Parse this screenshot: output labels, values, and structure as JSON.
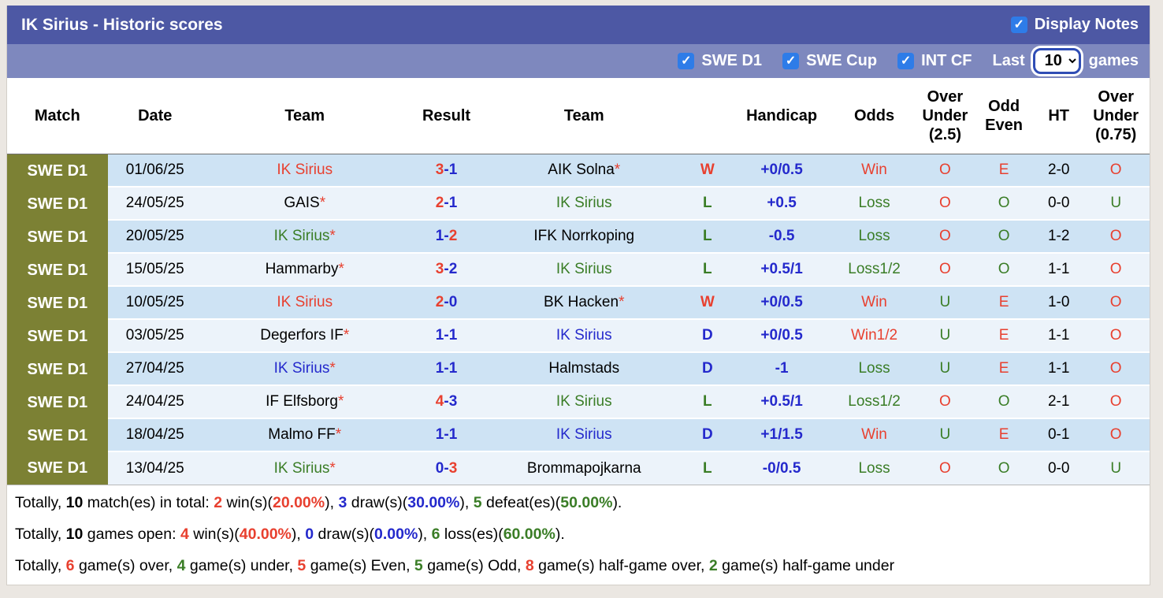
{
  "header": {
    "title": "IK Sirius - Historic scores",
    "display_notes_label": "Display Notes",
    "filters": [
      {
        "label": "SWE D1",
        "checked": true
      },
      {
        "label": "SWE Cup",
        "checked": true
      },
      {
        "label": "INT CF",
        "checked": true
      }
    ],
    "last_label": "Last",
    "games_label": "games",
    "games_options": [
      "10"
    ],
    "games_selected": "10"
  },
  "colors": {
    "accent_red": "#e8402f",
    "accent_blue": "#2429cc",
    "accent_green": "#3a7d26",
    "league_olive": "#7c8134",
    "header_purple": "#4d58a4",
    "filterbar_purple": "#7e88be",
    "row_stripe_dark": "#cee3f4",
    "row_stripe_light": "#ecf3fa",
    "checkbox_blue": "#2e7ce8"
  },
  "table": {
    "columns": [
      "Match",
      "Date",
      "Team",
      "Result",
      "Team",
      "",
      "Handicap",
      "Odds",
      "Over\nUnder\n(2.5)",
      "Odd\nEven",
      "HT",
      "Over\nUnder\n(0.75)"
    ],
    "rows": [
      {
        "league": "SWE D1",
        "date": "01/06/25",
        "home": {
          "name": "IK Sirius",
          "color": "red",
          "star": false
        },
        "result": {
          "home": "3",
          "away": "1",
          "home_color": "red",
          "away_color": "blue"
        },
        "away": {
          "name": "AIK Solna",
          "color": "black",
          "star": true
        },
        "wld": {
          "text": "W",
          "color": "red"
        },
        "handicap": "+0/0.5",
        "odds": {
          "text": "Win",
          "color": "red"
        },
        "ou25": {
          "text": "O",
          "color": "red"
        },
        "odd_even": {
          "text": "E",
          "color": "red"
        },
        "ht": "2-0",
        "ou075": {
          "text": "O",
          "color": "red"
        }
      },
      {
        "league": "SWE D1",
        "date": "24/05/25",
        "home": {
          "name": "GAIS",
          "color": "black",
          "star": true
        },
        "result": {
          "home": "2",
          "away": "1",
          "home_color": "red",
          "away_color": "blue"
        },
        "away": {
          "name": "IK Sirius",
          "color": "green",
          "star": false
        },
        "wld": {
          "text": "L",
          "color": "green"
        },
        "handicap": "+0.5",
        "odds": {
          "text": "Loss",
          "color": "green"
        },
        "ou25": {
          "text": "O",
          "color": "red"
        },
        "odd_even": {
          "text": "O",
          "color": "green"
        },
        "ht": "0-0",
        "ou075": {
          "text": "U",
          "color": "green"
        }
      },
      {
        "league": "SWE D1",
        "date": "20/05/25",
        "home": {
          "name": "IK Sirius",
          "color": "green",
          "star": true
        },
        "result": {
          "home": "1",
          "away": "2",
          "home_color": "blue",
          "away_color": "red"
        },
        "away": {
          "name": "IFK Norrkoping",
          "color": "black",
          "star": false
        },
        "wld": {
          "text": "L",
          "color": "green"
        },
        "handicap": "-0.5",
        "odds": {
          "text": "Loss",
          "color": "green"
        },
        "ou25": {
          "text": "O",
          "color": "red"
        },
        "odd_even": {
          "text": "O",
          "color": "green"
        },
        "ht": "1-2",
        "ou075": {
          "text": "O",
          "color": "red"
        }
      },
      {
        "league": "SWE D1",
        "date": "15/05/25",
        "home": {
          "name": "Hammarby",
          "color": "black",
          "star": true
        },
        "result": {
          "home": "3",
          "away": "2",
          "home_color": "red",
          "away_color": "blue"
        },
        "away": {
          "name": "IK Sirius",
          "color": "green",
          "star": false
        },
        "wld": {
          "text": "L",
          "color": "green"
        },
        "handicap": "+0.5/1",
        "odds": {
          "text": "Loss1/2",
          "color": "green"
        },
        "ou25": {
          "text": "O",
          "color": "red"
        },
        "odd_even": {
          "text": "O",
          "color": "green"
        },
        "ht": "1-1",
        "ou075": {
          "text": "O",
          "color": "red"
        }
      },
      {
        "league": "SWE D1",
        "date": "10/05/25",
        "home": {
          "name": "IK Sirius",
          "color": "red",
          "star": false
        },
        "result": {
          "home": "2",
          "away": "0",
          "home_color": "red",
          "away_color": "blue"
        },
        "away": {
          "name": "BK Hacken",
          "color": "black",
          "star": true
        },
        "wld": {
          "text": "W",
          "color": "red"
        },
        "handicap": "+0/0.5",
        "odds": {
          "text": "Win",
          "color": "red"
        },
        "ou25": {
          "text": "U",
          "color": "green"
        },
        "odd_even": {
          "text": "E",
          "color": "red"
        },
        "ht": "1-0",
        "ou075": {
          "text": "O",
          "color": "red"
        }
      },
      {
        "league": "SWE D1",
        "date": "03/05/25",
        "home": {
          "name": "Degerfors IF",
          "color": "black",
          "star": true
        },
        "result": {
          "home": "1",
          "away": "1",
          "home_color": "blue",
          "away_color": "blue"
        },
        "away": {
          "name": "IK Sirius",
          "color": "blue",
          "star": false
        },
        "wld": {
          "text": "D",
          "color": "blue"
        },
        "handicap": "+0/0.5",
        "odds": {
          "text": "Win1/2",
          "color": "red"
        },
        "ou25": {
          "text": "U",
          "color": "green"
        },
        "odd_even": {
          "text": "E",
          "color": "red"
        },
        "ht": "1-1",
        "ou075": {
          "text": "O",
          "color": "red"
        }
      },
      {
        "league": "SWE D1",
        "date": "27/04/25",
        "home": {
          "name": "IK Sirius",
          "color": "blue",
          "star": true
        },
        "result": {
          "home": "1",
          "away": "1",
          "home_color": "blue",
          "away_color": "blue"
        },
        "away": {
          "name": "Halmstads",
          "color": "black",
          "star": false
        },
        "wld": {
          "text": "D",
          "color": "blue"
        },
        "handicap": "-1",
        "odds": {
          "text": "Loss",
          "color": "green"
        },
        "ou25": {
          "text": "U",
          "color": "green"
        },
        "odd_even": {
          "text": "E",
          "color": "red"
        },
        "ht": "1-1",
        "ou075": {
          "text": "O",
          "color": "red"
        }
      },
      {
        "league": "SWE D1",
        "date": "24/04/25",
        "home": {
          "name": "IF Elfsborg",
          "color": "black",
          "star": true
        },
        "result": {
          "home": "4",
          "away": "3",
          "home_color": "red",
          "away_color": "blue"
        },
        "away": {
          "name": "IK Sirius",
          "color": "green",
          "star": false
        },
        "wld": {
          "text": "L",
          "color": "green"
        },
        "handicap": "+0.5/1",
        "odds": {
          "text": "Loss1/2",
          "color": "green"
        },
        "ou25": {
          "text": "O",
          "color": "red"
        },
        "odd_even": {
          "text": "O",
          "color": "green"
        },
        "ht": "2-1",
        "ou075": {
          "text": "O",
          "color": "red"
        }
      },
      {
        "league": "SWE D1",
        "date": "18/04/25",
        "home": {
          "name": "Malmo FF",
          "color": "black",
          "star": true
        },
        "result": {
          "home": "1",
          "away": "1",
          "home_color": "blue",
          "away_color": "blue"
        },
        "away": {
          "name": "IK Sirius",
          "color": "blue",
          "star": false
        },
        "wld": {
          "text": "D",
          "color": "blue"
        },
        "handicap": "+1/1.5",
        "odds": {
          "text": "Win",
          "color": "red"
        },
        "ou25": {
          "text": "U",
          "color": "green"
        },
        "odd_even": {
          "text": "E",
          "color": "red"
        },
        "ht": "0-1",
        "ou075": {
          "text": "O",
          "color": "red"
        }
      },
      {
        "league": "SWE D1",
        "date": "13/04/25",
        "home": {
          "name": "IK Sirius",
          "color": "green",
          "star": true
        },
        "result": {
          "home": "0",
          "away": "3",
          "home_color": "blue",
          "away_color": "red"
        },
        "away": {
          "name": "Brommapojkarna",
          "color": "black",
          "star": false
        },
        "wld": {
          "text": "L",
          "color": "green"
        },
        "handicap": "-0/0.5",
        "odds": {
          "text": "Loss",
          "color": "green"
        },
        "ou25": {
          "text": "O",
          "color": "red"
        },
        "odd_even": {
          "text": "O",
          "color": "green"
        },
        "ht": "0-0",
        "ou075": {
          "text": "U",
          "color": "green"
        }
      }
    ]
  },
  "summary": {
    "lines": [
      {
        "segments": [
          {
            "t": "Totally, "
          },
          {
            "t": "10",
            "b": true
          },
          {
            "t": " match(es) in total: "
          },
          {
            "t": "2",
            "c": "red",
            "b": true
          },
          {
            "t": " win(s)("
          },
          {
            "t": "20.00%",
            "c": "red",
            "b": true
          },
          {
            "t": "), "
          },
          {
            "t": "3",
            "c": "blue",
            "b": true
          },
          {
            "t": " draw(s)("
          },
          {
            "t": "30.00%",
            "c": "blue",
            "b": true
          },
          {
            "t": "), "
          },
          {
            "t": "5",
            "c": "green",
            "b": true
          },
          {
            "t": " defeat(es)("
          },
          {
            "t": "50.00%",
            "c": "green",
            "b": true
          },
          {
            "t": ")."
          }
        ]
      },
      {
        "segments": [
          {
            "t": "Totally, "
          },
          {
            "t": "10",
            "b": true
          },
          {
            "t": " games open: "
          },
          {
            "t": "4",
            "c": "red",
            "b": true
          },
          {
            "t": " win(s)("
          },
          {
            "t": "40.00%",
            "c": "red",
            "b": true
          },
          {
            "t": "), "
          },
          {
            "t": "0",
            "c": "blue",
            "b": true
          },
          {
            "t": " draw(s)("
          },
          {
            "t": "0.00%",
            "c": "blue",
            "b": true
          },
          {
            "t": "), "
          },
          {
            "t": "6",
            "c": "green",
            "b": true
          },
          {
            "t": " loss(es)("
          },
          {
            "t": "60.00%",
            "c": "green",
            "b": true
          },
          {
            "t": ")."
          }
        ]
      },
      {
        "segments": [
          {
            "t": "Totally, "
          },
          {
            "t": "6",
            "c": "red",
            "b": true
          },
          {
            "t": " game(s) over, "
          },
          {
            "t": "4",
            "c": "green",
            "b": true
          },
          {
            "t": " game(s) under, "
          },
          {
            "t": "5",
            "c": "red",
            "b": true
          },
          {
            "t": " game(s) Even, "
          },
          {
            "t": "5",
            "c": "green",
            "b": true
          },
          {
            "t": " game(s) Odd, "
          },
          {
            "t": "8",
            "c": "red",
            "b": true
          },
          {
            "t": " game(s) half-game over, "
          },
          {
            "t": "2",
            "c": "green",
            "b": true
          },
          {
            "t": " game(s) half-game under"
          }
        ]
      }
    ]
  }
}
